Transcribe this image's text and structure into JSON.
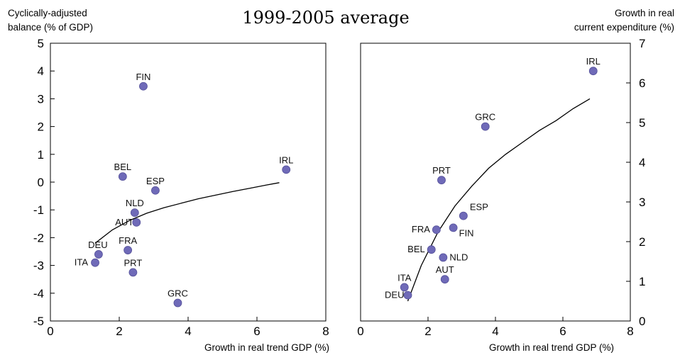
{
  "figure": {
    "title": "1999-2005 average"
  },
  "colors": {
    "marker": "#6F6AB8",
    "marker_stroke": "#55519A",
    "axis": "#000000"
  },
  "chart_data": [
    {
      "type": "scatter",
      "title": "",
      "xlabel": "Growth in real trend GDP (%)",
      "ylabel": "Cyclically-adjusted balance (% of GDP)",
      "ylabel_lines": [
        "Cyclically-adjusted",
        "balance (% of GDP)"
      ],
      "xlim": [
        0,
        8
      ],
      "ylim": [
        -5,
        5
      ],
      "xticks": [
        0,
        2,
        4,
        6,
        8
      ],
      "yticks": [
        -5,
        -4,
        -3,
        -2,
        -1,
        0,
        1,
        2,
        3,
        4,
        5
      ],
      "y_axis_side": "left",
      "grid": false,
      "points": [
        {
          "label": "FIN",
          "x": 2.7,
          "y": 3.45
        },
        {
          "label": "BEL",
          "x": 2.1,
          "y": 0.2
        },
        {
          "label": "ESP",
          "x": 3.05,
          "y": -0.3
        },
        {
          "label": "IRL",
          "x": 6.85,
          "y": 0.45
        },
        {
          "label": "NLD",
          "x": 2.45,
          "y": -1.1
        },
        {
          "label": "AUT",
          "x": 2.5,
          "y": -1.45
        },
        {
          "label": "DEU",
          "x": 1.4,
          "y": -2.6
        },
        {
          "label": "FRA",
          "x": 2.25,
          "y": -2.45
        },
        {
          "label": "ITA",
          "x": 1.3,
          "y": -2.9
        },
        {
          "label": "PRT",
          "x": 2.4,
          "y": -3.25
        },
        {
          "label": "GRC",
          "x": 3.7,
          "y": -4.35
        }
      ],
      "trendline": {
        "x": [
          1.3,
          1.8,
          2.3,
          2.8,
          3.3,
          3.8,
          4.3,
          4.8,
          5.3,
          5.8,
          6.3,
          6.65
        ],
        "y": [
          -2.2,
          -1.72,
          -1.38,
          -1.12,
          -0.92,
          -0.76,
          -0.6,
          -0.47,
          -0.34,
          -0.22,
          -0.1,
          -0.02
        ]
      }
    },
    {
      "type": "scatter",
      "title": "",
      "xlabel": "Growth in real trend GDP (%)",
      "ylabel": "Growth in real current expenditure (%)",
      "ylabel_lines": [
        "Growth in real",
        "current expenditure (%)"
      ],
      "xlim": [
        0,
        8
      ],
      "ylim": [
        0,
        7
      ],
      "xticks": [
        0,
        2,
        4,
        6,
        8
      ],
      "yticks": [
        0,
        1,
        2,
        3,
        4,
        5,
        6,
        7
      ],
      "y_axis_side": "right",
      "grid": false,
      "points": [
        {
          "label": "IRL",
          "x": 6.9,
          "y": 6.3
        },
        {
          "label": "GRC",
          "x": 3.7,
          "y": 4.9
        },
        {
          "label": "PRT",
          "x": 2.4,
          "y": 3.55
        },
        {
          "label": "ESP",
          "x": 3.05,
          "y": 2.65
        },
        {
          "label": "FRA",
          "x": 2.25,
          "y": 2.3
        },
        {
          "label": "FIN",
          "x": 2.75,
          "y": 2.35
        },
        {
          "label": "BEL",
          "x": 2.1,
          "y": 1.8
        },
        {
          "label": "NLD",
          "x": 2.45,
          "y": 1.6
        },
        {
          "label": "AUT",
          "x": 2.5,
          "y": 1.05
        },
        {
          "label": "ITA",
          "x": 1.3,
          "y": 0.85
        },
        {
          "label": "DEU",
          "x": 1.4,
          "y": 0.65
        }
      ],
      "trendline": {
        "x": [
          1.4,
          1.8,
          2.3,
          2.8,
          3.3,
          3.8,
          4.3,
          4.8,
          5.3,
          5.8,
          6.3,
          6.8
        ],
        "y": [
          0.5,
          1.4,
          2.25,
          2.9,
          3.4,
          3.85,
          4.2,
          4.5,
          4.8,
          5.05,
          5.35,
          5.6
        ]
      }
    }
  ]
}
